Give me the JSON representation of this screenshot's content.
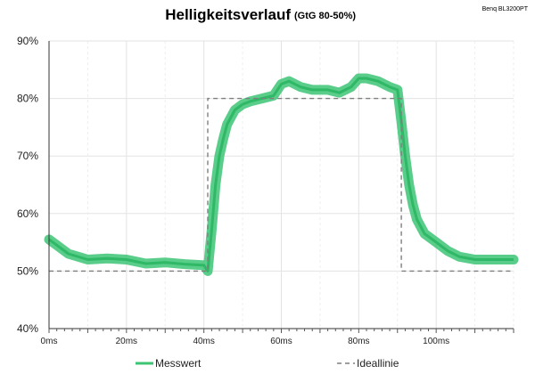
{
  "brand_label": "Benq BL3200PT",
  "chart_data": {
    "type": "line",
    "title": "Helligkeitsverlauf",
    "subtitle": "(GtG 80-50%)",
    "xlabel": "",
    "ylabel": "",
    "xlim": [
      0,
      120
    ],
    "ylim": [
      40,
      90
    ],
    "x_ticks": [
      0,
      20,
      40,
      60,
      80,
      100
    ],
    "x_tick_labels": [
      "0ms",
      "20ms",
      "40ms",
      "60ms",
      "80ms",
      "100ms"
    ],
    "y_ticks": [
      40,
      50,
      60,
      70,
      80,
      90
    ],
    "y_tick_labels": [
      "40%",
      "50%",
      "60%",
      "70%",
      "80%",
      "90%"
    ],
    "grid": true,
    "legend_position": "bottom",
    "colors": {
      "measured": "#3cc474",
      "ideal": "#7f7f7f"
    },
    "series": [
      {
        "name": "Messwert",
        "style": "solid",
        "x": [
          0,
          2,
          5,
          10,
          15,
          20,
          25,
          30,
          35,
          40,
          41,
          42,
          43,
          44,
          45,
          46,
          48,
          50,
          52,
          55,
          58,
          60,
          62,
          65,
          68,
          72,
          75,
          78,
          80,
          82,
          85,
          88,
          90,
          91,
          92,
          93,
          94,
          95,
          97,
          100,
          103,
          106,
          110,
          115,
          120
        ],
        "values": [
          55.5,
          54.5,
          53,
          52,
          52.2,
          52,
          51.3,
          51.5,
          51.2,
          51,
          50,
          57,
          65,
          70,
          73,
          75.5,
          78,
          79,
          79.5,
          80,
          80.5,
          82.5,
          83,
          82,
          81.5,
          81.5,
          81,
          82,
          83.5,
          83.5,
          83,
          82,
          81.5,
          76,
          70,
          65,
          61.5,
          59,
          56.5,
          55,
          53.5,
          52.5,
          52,
          52,
          52
        ]
      },
      {
        "name": "Ideallinie",
        "style": "dashed",
        "x": [
          0,
          41,
          41,
          91,
          91,
          120
        ],
        "values": [
          50,
          50,
          80,
          80,
          50,
          50
        ]
      }
    ]
  }
}
